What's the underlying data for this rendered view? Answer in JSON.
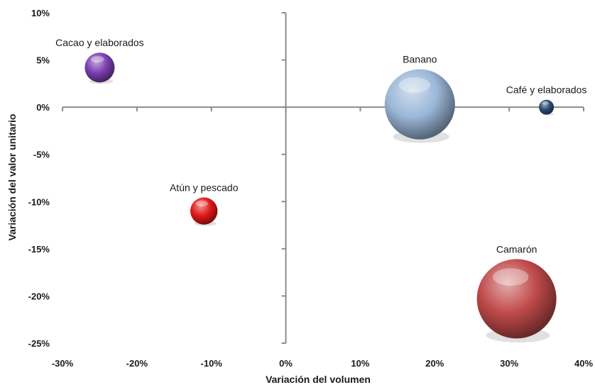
{
  "chart_data": {
    "type": "bubble",
    "xlabel": "Variación del volumen",
    "ylabel": "Variación del valor unitario",
    "xlim": [
      -0.3,
      0.4
    ],
    "ylim": [
      -0.25,
      0.1
    ],
    "x_ticks": [
      -0.3,
      -0.2,
      -0.1,
      0.0,
      0.1,
      0.2,
      0.3,
      0.4
    ],
    "x_tick_labels": [
      "-30%",
      "-20%",
      "-10%",
      "0%",
      "10%",
      "20%",
      "30%",
      "40%"
    ],
    "y_ticks": [
      -0.25,
      -0.2,
      -0.15,
      -0.1,
      -0.05,
      0.0,
      0.05,
      0.1
    ],
    "y_tick_labels": [
      "-25%",
      "-20%",
      "-15%",
      "-10%",
      "-5%",
      "0%",
      "5%",
      "10%"
    ],
    "grid": false,
    "legend": false,
    "points": [
      {
        "label": "Cacao y elaborados",
        "x": -0.25,
        "y": 0.042,
        "size": 0.18,
        "color": "#7a3fb0"
      },
      {
        "label": "Atún y pescado",
        "x": -0.11,
        "y": -0.11,
        "size": 0.15,
        "color": "#e01818"
      },
      {
        "label": "Banano",
        "x": 0.18,
        "y": 0.003,
        "size": 1.0,
        "color": "#9bb7d8"
      },
      {
        "label": "Café y elaborados",
        "x": 0.35,
        "y": 0.0,
        "size": 0.045,
        "color": "#2b4a72"
      },
      {
        "label": "Camarón",
        "x": 0.31,
        "y": -0.203,
        "size": 1.28,
        "color": "#c04a4a"
      }
    ]
  }
}
